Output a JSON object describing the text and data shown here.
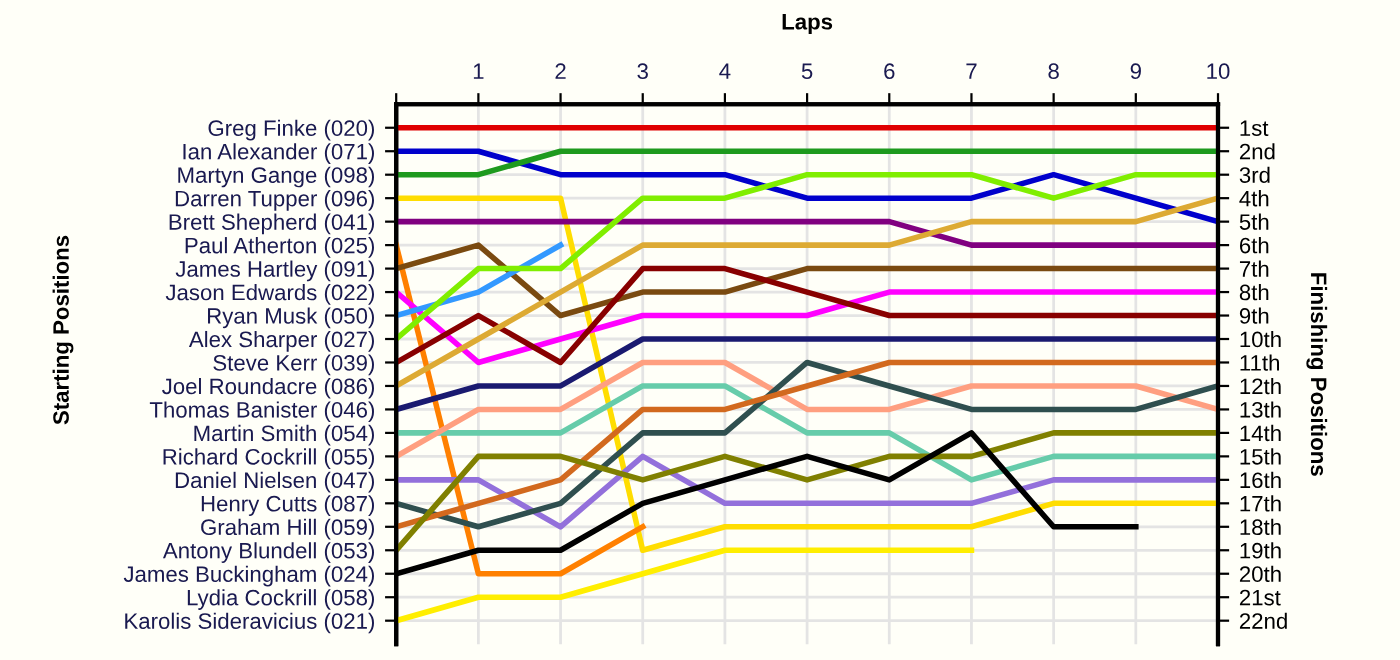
{
  "chart_data": {
    "type": "line",
    "xlabel": "Laps",
    "annotations": [
      "Starting Positions"
    ],
    "y2label": "Finishing Positions",
    "x": [
      0,
      1,
      2,
      3,
      4,
      5,
      6,
      7,
      8,
      9,
      10
    ],
    "xlim": [
      0,
      10
    ],
    "xticks": [
      {
        "value": 0,
        "label": null
      },
      1,
      2,
      3,
      4,
      5,
      6,
      7,
      8,
      9,
      10
    ],
    "y_categories": [
      "Greg Finke (020)",
      "Ian Alexander (071)",
      "Martyn Gange (098)",
      "Darren Tupper (096)",
      "Brett Shepherd (041)",
      "Paul Atherton (025)",
      "James Hartley (091)",
      "Jason Edwards (022)",
      "Ryan Musk (050)",
      "Alex Sharper (027)",
      "Steve Kerr (039)",
      "Joel Roundacre (086)",
      "Thomas Banister (046)",
      "Martin Smith (054)",
      "Richard Cockrill (055)",
      "Daniel Nielsen (047)",
      "Henry Cutts (087)",
      "Graham Hill (059)",
      "Antony Blundell (053)",
      "James Buckingham (024)",
      "Lydia Cockrill (058)",
      "Karolis Sideravicius (021)"
    ],
    "y2lim": [
      23,
      0
    ],
    "y2ticks": [
      {
        "value": 1,
        "label": "1st"
      },
      {
        "value": 2,
        "label": "2nd"
      },
      {
        "value": 3,
        "label": "3rd"
      },
      {
        "value": 4,
        "label": "4th"
      },
      {
        "value": 5,
        "label": "5th"
      },
      {
        "value": 6,
        "label": "6th"
      },
      {
        "value": 7,
        "label": "7th"
      },
      {
        "value": 8,
        "label": "8th"
      },
      {
        "value": 9,
        "label": "9th"
      },
      {
        "value": 10,
        "label": "10th"
      },
      {
        "value": 11,
        "label": "11th"
      },
      {
        "value": 12,
        "label": "12th"
      },
      {
        "value": 13,
        "label": "13th"
      },
      {
        "value": 14,
        "label": "14th"
      },
      {
        "value": 15,
        "label": "15th"
      },
      {
        "value": 16,
        "label": "16th"
      },
      {
        "value": 17,
        "label": "17th"
      },
      {
        "value": 18,
        "label": "18th"
      },
      {
        "value": 19,
        "label": "19th"
      },
      {
        "value": 20,
        "label": "20th"
      },
      {
        "value": 21,
        "label": "21st"
      },
      {
        "value": 22,
        "label": "22nd"
      }
    ],
    "grid": true,
    "marker": "none",
    "line_style": "solid",
    "series": [
      {
        "axis": "y2",
        "color": "#e00000",
        "values": [
          1,
          1,
          1,
          1,
          1,
          1,
          1,
          1,
          1,
          1,
          1
        ]
      },
      {
        "axis": "y2",
        "color": "#0000cc",
        "values": [
          2,
          2,
          3,
          3,
          3,
          4,
          4,
          4,
          3,
          4,
          5
        ]
      },
      {
        "axis": "y2",
        "color": "#1e9a1e",
        "values": [
          3,
          3,
          2,
          2,
          2,
          2,
          2,
          2,
          2,
          2,
          2
        ]
      },
      {
        "axis": "y2",
        "color": "#ffdd00",
        "values": [
          4,
          4,
          4,
          19,
          18,
          18,
          18,
          18,
          17,
          17,
          17
        ]
      },
      {
        "axis": "y2",
        "color": "#800080",
        "values": [
          5,
          5,
          5,
          5,
          5,
          5,
          5,
          6,
          6,
          6,
          6
        ]
      },
      {
        "axis": "y2",
        "color": "#ff8000",
        "values": [
          6,
          20,
          20,
          18,
          null,
          null,
          null,
          null,
          null,
          null,
          null
        ]
      },
      {
        "axis": "y2",
        "color": "#7a4a10",
        "values": [
          7,
          6,
          9,
          8,
          8,
          7,
          7,
          7,
          7,
          7,
          7
        ]
      },
      {
        "axis": "y2",
        "color": "#ff00ff",
        "values": [
          8,
          11,
          10,
          9,
          9,
          9,
          8,
          8,
          8,
          8,
          8
        ]
      },
      {
        "axis": "y2",
        "color": "#3399ff",
        "values": [
          9,
          8,
          6,
          null,
          null,
          null,
          null,
          null,
          null,
          null,
          null
        ]
      },
      {
        "axis": "y2",
        "color": "#80ee00",
        "values": [
          10,
          7,
          7,
          4,
          4,
          3,
          3,
          3,
          4,
          3,
          3
        ]
      },
      {
        "axis": "y2",
        "color": "#880000",
        "values": [
          11,
          9,
          11,
          7,
          7,
          8,
          9,
          9,
          9,
          9,
          9
        ]
      },
      {
        "axis": "y2",
        "color": "#ddaa33",
        "values": [
          12,
          10,
          8,
          6,
          6,
          6,
          6,
          5,
          5,
          5,
          4
        ]
      },
      {
        "axis": "y2",
        "color": "#1a1a70",
        "values": [
          13,
          12,
          12,
          10,
          10,
          10,
          10,
          10,
          10,
          10,
          10
        ]
      },
      {
        "axis": "y2",
        "color": "#66ccaa",
        "values": [
          14,
          14,
          14,
          12,
          12,
          14,
          14,
          16,
          15,
          15,
          15
        ]
      },
      {
        "axis": "y2",
        "color": "#ff9f80",
        "values": [
          15,
          13,
          13,
          11,
          11,
          13,
          13,
          12,
          12,
          12,
          13
        ]
      },
      {
        "axis": "y2",
        "color": "#9370db",
        "values": [
          16,
          16,
          18,
          15,
          17,
          17,
          17,
          17,
          16,
          16,
          16
        ]
      },
      {
        "axis": "y2",
        "color": "#2f4f4f",
        "values": [
          17,
          18,
          17,
          14,
          14,
          11,
          12,
          13,
          13,
          13,
          12
        ]
      },
      {
        "axis": "y2",
        "color": "#d2691e",
        "values": [
          18,
          17,
          16,
          13,
          13,
          12,
          11,
          11,
          11,
          11,
          11
        ]
      },
      {
        "axis": "y2",
        "color": "#808000",
        "values": [
          19,
          15,
          15,
          16,
          15,
          16,
          15,
          15,
          14,
          14,
          14
        ]
      },
      {
        "axis": "y2",
        "color": "#000000",
        "values": [
          20,
          19,
          19,
          17,
          16,
          15,
          16,
          14,
          18,
          18,
          null
        ]
      },
      {
        "axis": "y2",
        "color": "#ffee00",
        "values": [
          22,
          21,
          21,
          20,
          19,
          19,
          19,
          19,
          null,
          null,
          null
        ]
      }
    ]
  }
}
